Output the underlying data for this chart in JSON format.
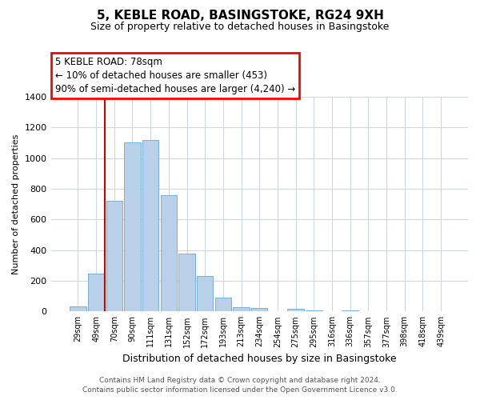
{
  "title": "5, KEBLE ROAD, BASINGSTOKE, RG24 9XH",
  "subtitle": "Size of property relative to detached houses in Basingstoke",
  "xlabel": "Distribution of detached houses by size in Basingstoke",
  "ylabel": "Number of detached properties",
  "bar_labels": [
    "29sqm",
    "49sqm",
    "70sqm",
    "90sqm",
    "111sqm",
    "131sqm",
    "152sqm",
    "172sqm",
    "193sqm",
    "213sqm",
    "234sqm",
    "254sqm",
    "275sqm",
    "295sqm",
    "316sqm",
    "336sqm",
    "357sqm",
    "377sqm",
    "398sqm",
    "418sqm",
    "439sqm"
  ],
  "bar_values": [
    35,
    245,
    720,
    1100,
    1115,
    760,
    375,
    230,
    90,
    30,
    20,
    0,
    15,
    5,
    0,
    5,
    0,
    0,
    0,
    0,
    0
  ],
  "bar_color": "#b8d0e8",
  "bar_edge_color": "#7aafd4",
  "vline_color": "#cc0000",
  "ylim": [
    0,
    1400
  ],
  "yticks": [
    0,
    200,
    400,
    600,
    800,
    1000,
    1200,
    1400
  ],
  "annotation_title": "5 KEBLE ROAD: 78sqm",
  "annotation_line1": "← 10% of detached houses are smaller (453)",
  "annotation_line2": "90% of semi-detached houses are larger (4,240) →",
  "footer1": "Contains HM Land Registry data © Crown copyright and database right 2024.",
  "footer2": "Contains public sector information licensed under the Open Government Licence v3.0.",
  "background_color": "#ffffff",
  "grid_color": "#cdd8e3"
}
